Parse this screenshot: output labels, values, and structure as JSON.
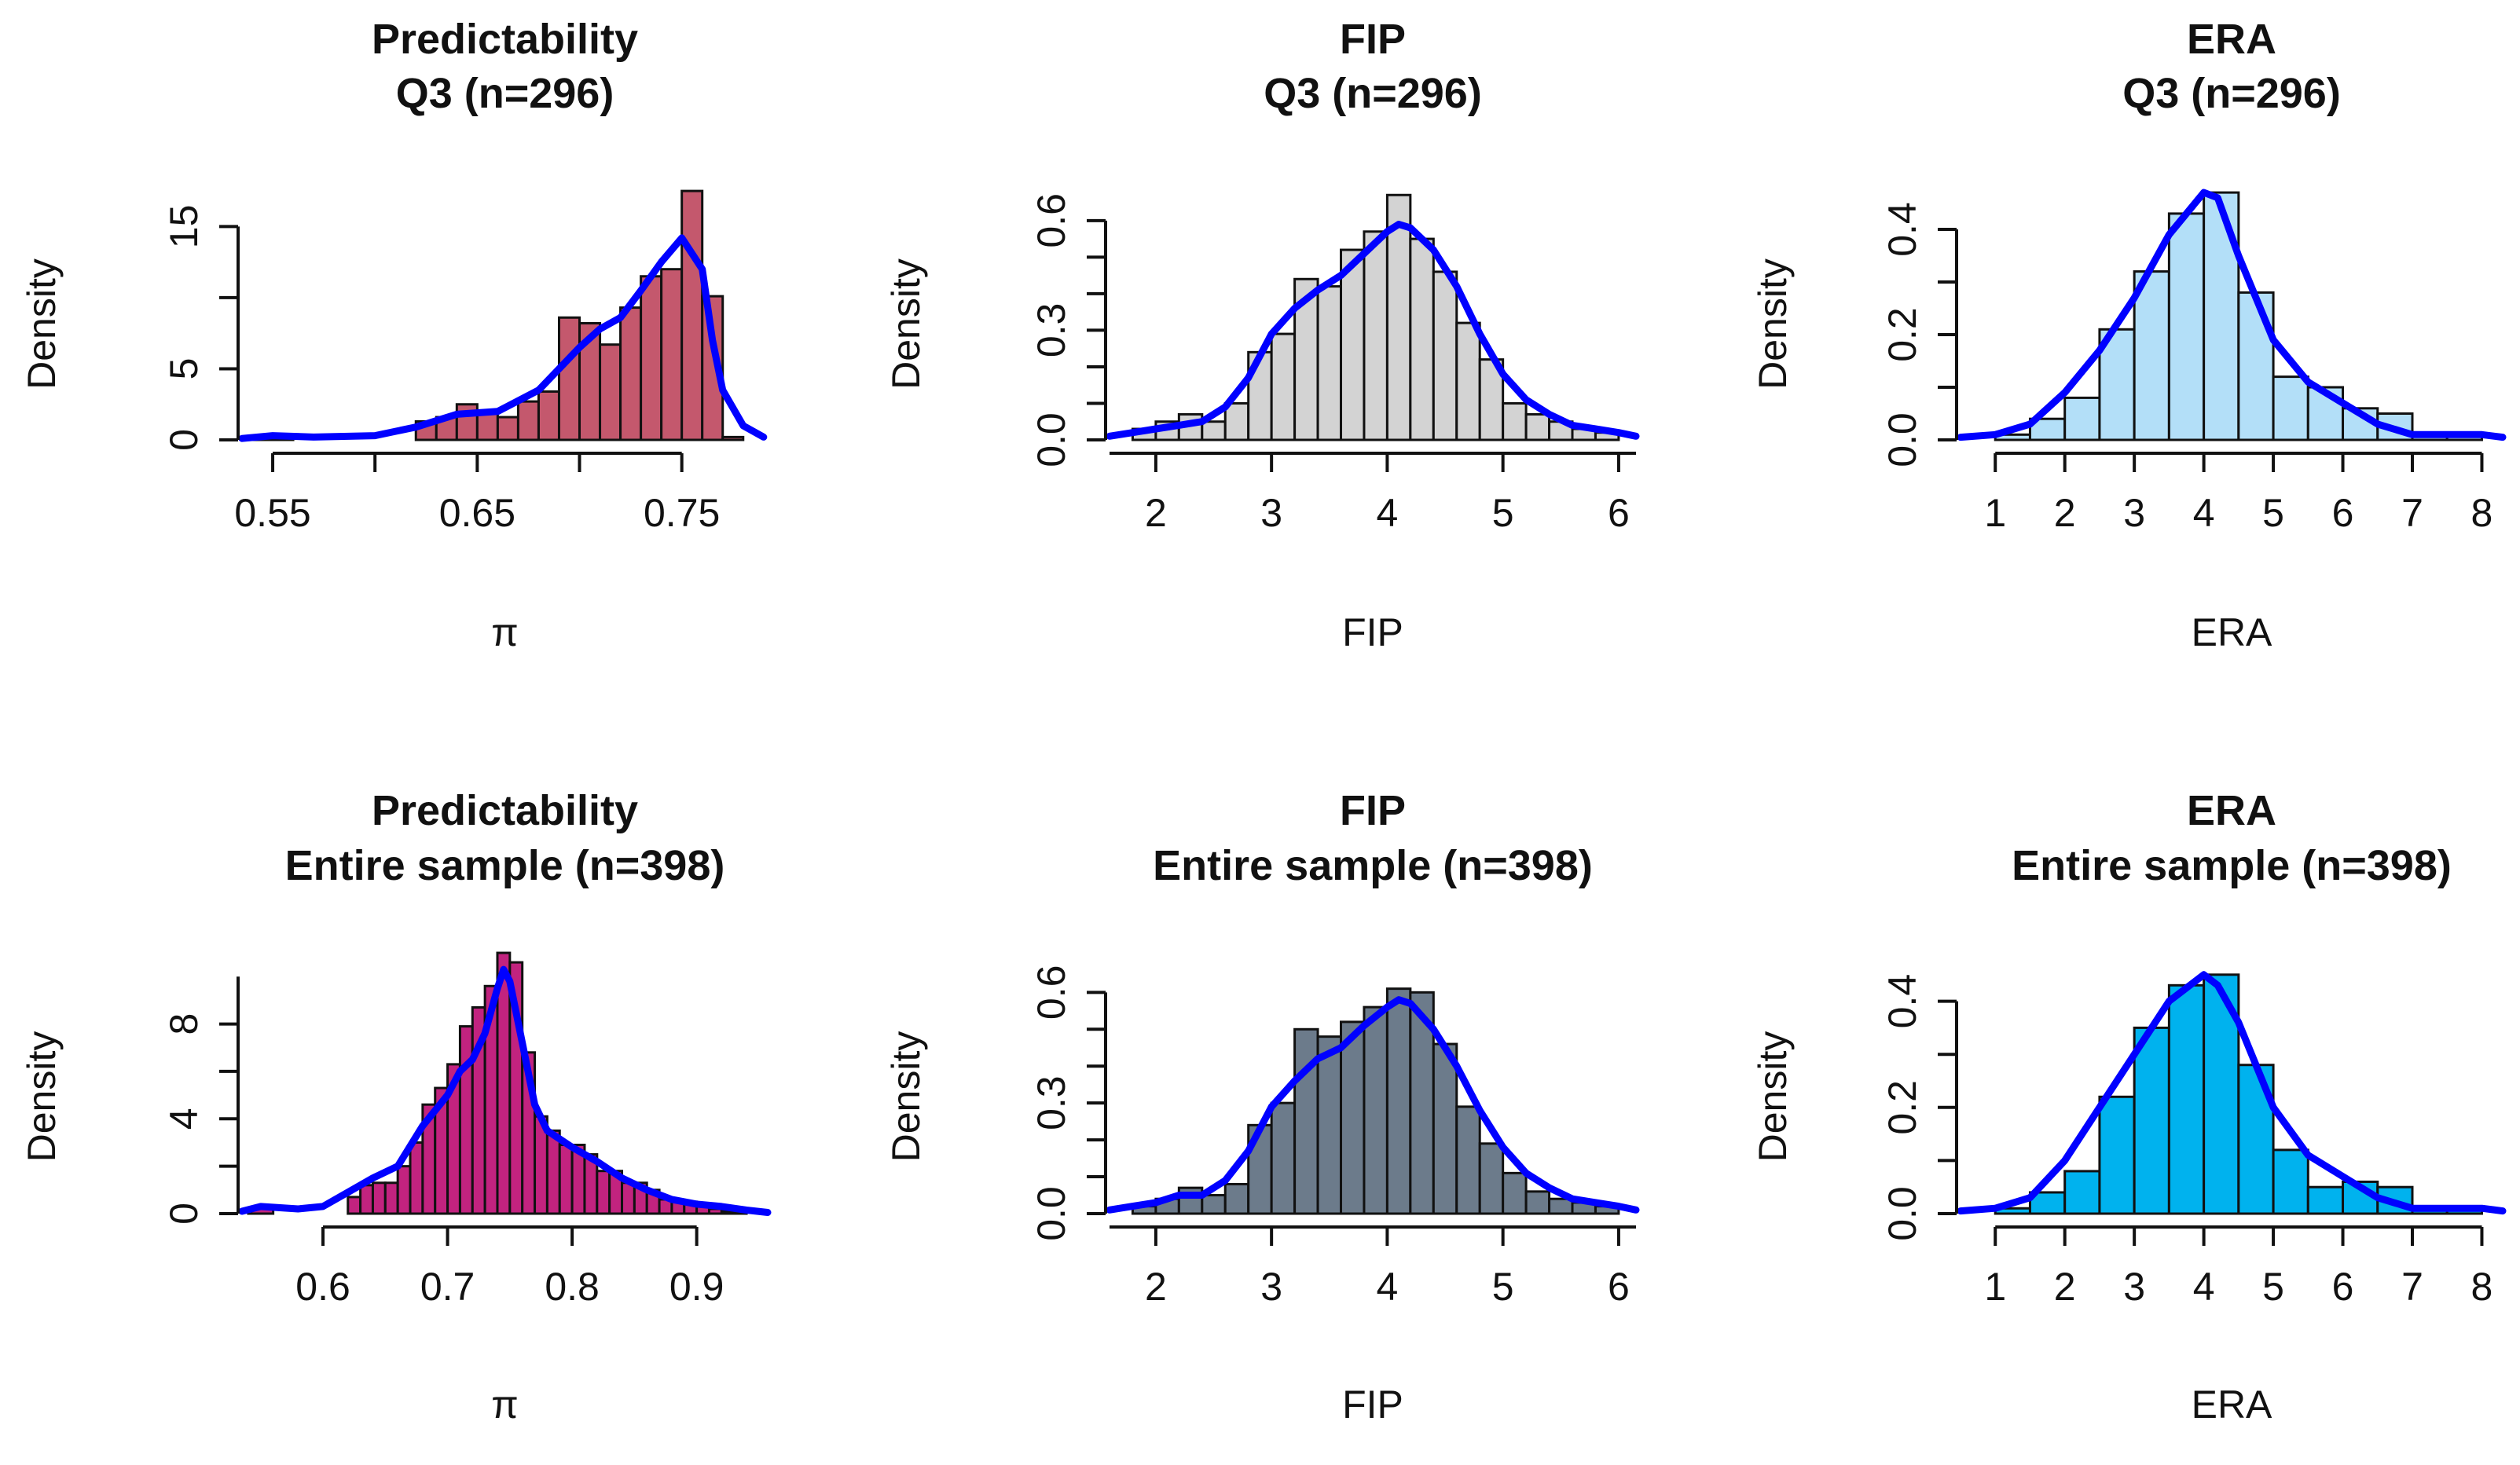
{
  "chart_data": [
    {
      "type": "bar",
      "title_lines": [
        "Predictability",
        "Q3 (n=296)"
      ],
      "xlabel": "π",
      "ylabel": "Density",
      "bar_color": "#c4586d",
      "curve_color": "#0000ff",
      "xlim": [
        0.535,
        0.792
      ],
      "ylim": [
        0,
        18.5
      ],
      "xticks": [
        0.55,
        0.6,
        0.65,
        0.7,
        0.75
      ],
      "xtick_labels": [
        "0.55",
        "",
        "0.65",
        "",
        "0.75"
      ],
      "yticks": [
        0,
        5,
        10,
        15
      ],
      "ytick_labels": [
        "0",
        "5",
        "",
        "15"
      ],
      "x_axis_range": [
        0.55,
        0.75
      ],
      "y_axis_range": [
        0,
        15
      ],
      "bin_edges": [
        0.54,
        0.55,
        0.56,
        0.57,
        0.58,
        0.59,
        0.6,
        0.61,
        0.62,
        0.63,
        0.64,
        0.65,
        0.66,
        0.67,
        0.68,
        0.69,
        0.7,
        0.71,
        0.72,
        0.73,
        0.74,
        0.75,
        0.76,
        0.77,
        0.78
      ],
      "values": [
        0.3,
        0.3,
        0,
        0,
        0,
        0,
        0,
        0,
        1.3,
        1.6,
        2.5,
        2.0,
        1.6,
        2.7,
        3.4,
        8.6,
        8.2,
        6.7,
        9.3,
        11.5,
        12.0,
        17.5,
        10.1,
        0.2
      ],
      "density_x": [
        0.535,
        0.55,
        0.57,
        0.6,
        0.62,
        0.64,
        0.66,
        0.68,
        0.7,
        0.71,
        0.72,
        0.73,
        0.74,
        0.75,
        0.76,
        0.765,
        0.77,
        0.78,
        0.79
      ],
      "density_y": [
        0.1,
        0.3,
        0.2,
        0.3,
        0.9,
        1.8,
        2.0,
        3.5,
        6.5,
        7.8,
        8.6,
        10.5,
        12.5,
        14.2,
        12.0,
        7.0,
        3.5,
        1.0,
        0.2
      ]
    },
    {
      "type": "bar",
      "title_lines": [
        "FIP",
        "Q3 (n=296)"
      ],
      "xlabel": "FIP",
      "ylabel": "Density",
      "bar_color": "#d3d3d3",
      "curve_color": "#0000ff",
      "xlim": [
        1.6,
        6.15
      ],
      "ylim": [
        0,
        0.72
      ],
      "xticks": [
        2,
        3,
        4,
        5,
        6
      ],
      "xtick_labels": [
        "2",
        "3",
        "4",
        "5",
        "6"
      ],
      "yticks": [
        0,
        0.1,
        0.2,
        0.3,
        0.4,
        0.5,
        0.6
      ],
      "ytick_labels": [
        "0.0",
        "",
        "",
        "0.3",
        "",
        "",
        "0.6"
      ],
      "x_axis_range": [
        1.6,
        6.15
      ],
      "y_axis_range": [
        0,
        0.6
      ],
      "bin_edges": [
        1.8,
        2.0,
        2.2,
        2.4,
        2.6,
        2.8,
        3.0,
        3.2,
        3.4,
        3.6,
        3.8,
        4.0,
        4.2,
        4.4,
        4.6,
        4.8,
        5.0,
        5.2,
        5.4,
        5.6,
        5.8,
        6.0
      ],
      "values": [
        0.03,
        0.05,
        0.07,
        0.05,
        0.1,
        0.24,
        0.29,
        0.44,
        0.42,
        0.52,
        0.57,
        0.67,
        0.55,
        0.46,
        0.32,
        0.22,
        0.1,
        0.07,
        0.05,
        0.03,
        0.02
      ],
      "density_x": [
        1.6,
        1.8,
        2.0,
        2.2,
        2.4,
        2.6,
        2.8,
        3.0,
        3.2,
        3.4,
        3.6,
        3.8,
        4.0,
        4.1,
        4.2,
        4.4,
        4.6,
        4.8,
        5.0,
        5.2,
        5.4,
        5.6,
        5.8,
        6.0,
        6.15
      ],
      "density_y": [
        0.01,
        0.02,
        0.03,
        0.04,
        0.05,
        0.09,
        0.17,
        0.29,
        0.36,
        0.41,
        0.45,
        0.51,
        0.57,
        0.59,
        0.58,
        0.52,
        0.42,
        0.29,
        0.18,
        0.11,
        0.07,
        0.04,
        0.03,
        0.02,
        0.01
      ]
    },
    {
      "type": "bar",
      "title_lines": [
        "ERA",
        "Q3 (n=296)"
      ],
      "xlabel": "ERA",
      "ylabel": "Density",
      "bar_color": "#b3dff8",
      "curve_color": "#0000ff",
      "xlim": [
        0.5,
        8.3
      ],
      "ylim": [
        0,
        0.5
      ],
      "xticks": [
        1,
        2,
        3,
        4,
        5,
        6,
        7,
        8
      ],
      "xtick_labels": [
        "1",
        "2",
        "3",
        "4",
        "5",
        "6",
        "7",
        "8"
      ],
      "yticks": [
        0,
        0.1,
        0.2,
        0.3,
        0.4
      ],
      "ytick_labels": [
        "0.0",
        "",
        "0.2",
        "",
        "0.4"
      ],
      "x_axis_range": [
        1,
        8
      ],
      "y_axis_range": [
        0,
        0.4
      ],
      "bin_edges": [
        1.0,
        1.5,
        2.0,
        2.5,
        3.0,
        3.5,
        4.0,
        4.5,
        5.0,
        5.5,
        6.0,
        6.5,
        7.0,
        7.5,
        8.0
      ],
      "values": [
        0.01,
        0.04,
        0.08,
        0.21,
        0.32,
        0.43,
        0.47,
        0.28,
        0.12,
        0.1,
        0.06,
        0.05,
        0.01,
        0.01
      ],
      "density_x": [
        0.5,
        1.0,
        1.5,
        2.0,
        2.5,
        3.0,
        3.5,
        4.0,
        4.2,
        4.5,
        5.0,
        5.5,
        6.0,
        6.5,
        7.0,
        7.5,
        8.0,
        8.3
      ],
      "density_y": [
        0.005,
        0.01,
        0.03,
        0.09,
        0.17,
        0.27,
        0.39,
        0.47,
        0.46,
        0.35,
        0.19,
        0.11,
        0.07,
        0.03,
        0.01,
        0.01,
        0.01,
        0.005
      ]
    },
    {
      "type": "bar",
      "title_lines": [
        "Predictability",
        "Entire sample (n=398)"
      ],
      "xlabel": "π",
      "ylabel": "Density",
      "bar_color": "#c2237f",
      "curve_color": "#0000ff",
      "xlim": [
        0.535,
        0.957
      ],
      "ylim": [
        0,
        11.2
      ],
      "xticks": [
        0.6,
        0.7,
        0.8,
        0.9
      ],
      "xtick_labels": [
        "0.6",
        "0.7",
        "0.8",
        "0.9"
      ],
      "yticks": [
        0,
        2,
        4,
        6,
        8
      ],
      "ytick_labels": [
        "0",
        "",
        "4",
        "",
        "8"
      ],
      "x_axis_range": [
        0.6,
        0.9
      ],
      "y_axis_range": [
        0,
        10
      ],
      "bin_edges": [
        0.54,
        0.56,
        0.58,
        0.6,
        0.62,
        0.63,
        0.64,
        0.65,
        0.66,
        0.67,
        0.68,
        0.69,
        0.7,
        0.71,
        0.72,
        0.73,
        0.74,
        0.75,
        0.76,
        0.77,
        0.78,
        0.79,
        0.8,
        0.81,
        0.82,
        0.83,
        0.84,
        0.85,
        0.86,
        0.87,
        0.88,
        0.89,
        0.9,
        0.91,
        0.92,
        0.93,
        0.94
      ],
      "values": [
        0.2,
        0,
        0,
        0,
        0.7,
        1.2,
        1.3,
        1.3,
        2.0,
        3.0,
        4.6,
        5.3,
        6.3,
        7.9,
        8.7,
        9.6,
        11.0,
        10.6,
        6.8,
        4.1,
        3.5,
        2.9,
        2.9,
        2.5,
        1.8,
        1.8,
        1.3,
        1.3,
        1.0,
        0.6,
        0.5,
        0.5,
        0.3,
        0.2,
        0.1,
        0.1
      ],
      "density_x": [
        0.535,
        0.55,
        0.58,
        0.6,
        0.62,
        0.64,
        0.66,
        0.68,
        0.7,
        0.71,
        0.72,
        0.73,
        0.74,
        0.745,
        0.75,
        0.76,
        0.77,
        0.78,
        0.8,
        0.82,
        0.84,
        0.86,
        0.88,
        0.9,
        0.92,
        0.94,
        0.957
      ],
      "density_y": [
        0.1,
        0.3,
        0.2,
        0.3,
        0.9,
        1.5,
        2.0,
        3.7,
        5.0,
        6.0,
        6.5,
        7.6,
        9.5,
        10.3,
        9.8,
        7.2,
        4.6,
        3.5,
        2.8,
        2.2,
        1.5,
        1.0,
        0.6,
        0.4,
        0.3,
        0.15,
        0.05
      ]
    },
    {
      "type": "bar",
      "title_lines": [
        "FIP",
        "Entire sample (n=398)"
      ],
      "xlabel": "FIP",
      "ylabel": "Density",
      "bar_color": "#6c7b8b",
      "curve_color": "#0000ff",
      "xlim": [
        1.6,
        6.15
      ],
      "ylim": [
        0,
        0.72
      ],
      "xticks": [
        2,
        3,
        4,
        5,
        6
      ],
      "xtick_labels": [
        "2",
        "3",
        "4",
        "5",
        "6"
      ],
      "yticks": [
        0,
        0.1,
        0.2,
        0.3,
        0.4,
        0.5,
        0.6
      ],
      "ytick_labels": [
        "0.0",
        "",
        "",
        "0.3",
        "",
        "",
        "0.6"
      ],
      "x_axis_range": [
        1.6,
        6.15
      ],
      "y_axis_range": [
        0,
        0.6
      ],
      "bin_edges": [
        1.8,
        2.0,
        2.2,
        2.4,
        2.6,
        2.8,
        3.0,
        3.2,
        3.4,
        3.6,
        3.8,
        4.0,
        4.2,
        4.4,
        4.6,
        4.8,
        5.0,
        5.2,
        5.4,
        5.6,
        5.8,
        6.0
      ],
      "values": [
        0.02,
        0.04,
        0.07,
        0.05,
        0.08,
        0.24,
        0.3,
        0.5,
        0.48,
        0.52,
        0.56,
        0.61,
        0.6,
        0.46,
        0.29,
        0.19,
        0.11,
        0.06,
        0.04,
        0.03,
        0.02
      ],
      "density_x": [
        1.6,
        1.8,
        2.0,
        2.2,
        2.4,
        2.6,
        2.8,
        3.0,
        3.2,
        3.4,
        3.6,
        3.8,
        4.0,
        4.1,
        4.2,
        4.4,
        4.6,
        4.8,
        5.0,
        5.2,
        5.4,
        5.6,
        5.8,
        6.0,
        6.15
      ],
      "density_y": [
        0.01,
        0.02,
        0.03,
        0.05,
        0.05,
        0.09,
        0.17,
        0.29,
        0.36,
        0.42,
        0.45,
        0.51,
        0.56,
        0.58,
        0.57,
        0.5,
        0.4,
        0.28,
        0.18,
        0.11,
        0.07,
        0.04,
        0.03,
        0.02,
        0.01
      ]
    },
    {
      "type": "bar",
      "title_lines": [
        "ERA",
        "Entire sample (n=398)"
      ],
      "xlabel": "ERA",
      "ylabel": "Density",
      "bar_color": "#00b2ee",
      "curve_color": "#0000ff",
      "xlim": [
        0.5,
        8.3
      ],
      "ylim": [
        0,
        0.5
      ],
      "xticks": [
        1,
        2,
        3,
        4,
        5,
        6,
        7,
        8
      ],
      "xtick_labels": [
        "1",
        "2",
        "3",
        "4",
        "5",
        "6",
        "7",
        "8"
      ],
      "yticks": [
        0,
        0.1,
        0.2,
        0.3,
        0.4
      ],
      "ytick_labels": [
        "0.0",
        "",
        "0.2",
        "",
        "0.4"
      ],
      "x_axis_range": [
        1,
        8
      ],
      "y_axis_range": [
        0,
        0.4
      ],
      "bin_edges": [
        1.0,
        1.5,
        2.0,
        2.5,
        3.0,
        3.5,
        4.0,
        4.5,
        5.0,
        5.5,
        6.0,
        6.5,
        7.0,
        7.5,
        8.0
      ],
      "values": [
        0.01,
        0.04,
        0.08,
        0.22,
        0.35,
        0.43,
        0.45,
        0.28,
        0.12,
        0.05,
        0.06,
        0.05,
        0.01,
        0.01
      ],
      "density_x": [
        0.5,
        1.0,
        1.5,
        2.0,
        2.5,
        3.0,
        3.5,
        4.0,
        4.2,
        4.5,
        5.0,
        5.5,
        6.0,
        6.5,
        7.0,
        7.5,
        8.0,
        8.3
      ],
      "density_y": [
        0.005,
        0.01,
        0.03,
        0.1,
        0.2,
        0.3,
        0.4,
        0.45,
        0.43,
        0.36,
        0.2,
        0.11,
        0.07,
        0.03,
        0.01,
        0.01,
        0.01,
        0.005
      ]
    }
  ]
}
